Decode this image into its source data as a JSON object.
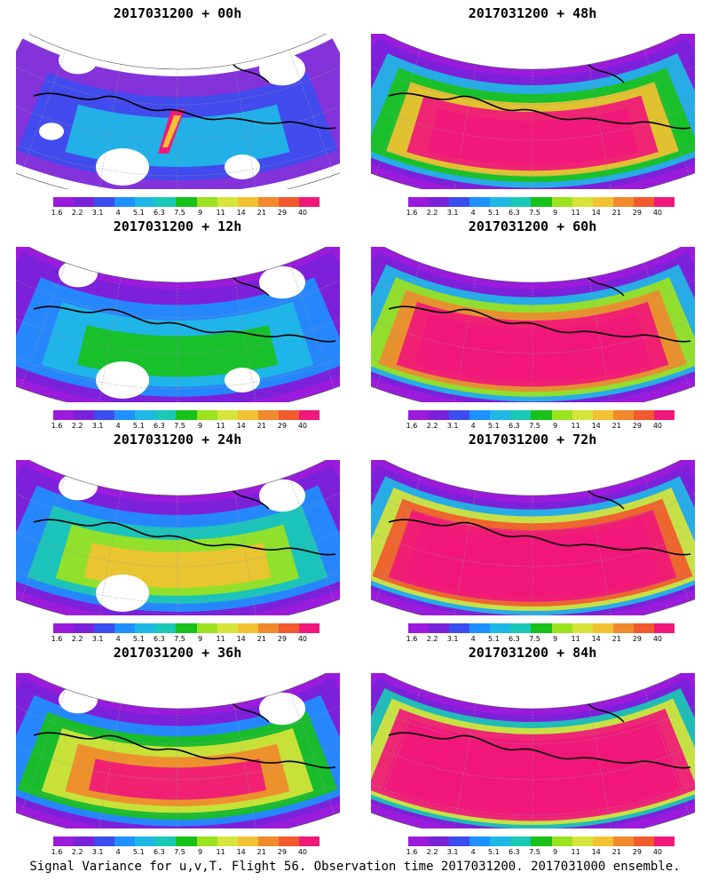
{
  "colorbar": {
    "labels": [
      "1.6",
      "2.2",
      "3.1",
      "4",
      "5.1",
      "6.3",
      "7.5",
      "9",
      "11",
      "14",
      "21",
      "29",
      "40"
    ],
    "colors": [
      "#9b1bdc",
      "#7a22d8",
      "#3c4df0",
      "#1e90ff",
      "#1fb8e6",
      "#19c9b5",
      "#18c11a",
      "#9be21f",
      "#d6e43b",
      "#f1c232",
      "#f08a2c",
      "#f25a2d",
      "#f0187a"
    ]
  },
  "panels": [
    {
      "title": "2017031200 + 00h",
      "intensity": 0
    },
    {
      "title": "2017031200 + 48h",
      "intensity": 4
    },
    {
      "title": "2017031200 + 12h",
      "intensity": 1
    },
    {
      "title": "2017031200 + 60h",
      "intensity": 5
    },
    {
      "title": "2017031200 + 24h",
      "intensity": 2
    },
    {
      "title": "2017031200 + 72h",
      "intensity": 6
    },
    {
      "title": "2017031200 + 36h",
      "intensity": 3
    },
    {
      "title": "2017031200 + 84h",
      "intensity": 7
    }
  ],
  "footer": "Signal Variance for u,v,T. Flight 56. Observation time 2017031200. 2017031000 ensemble."
}
